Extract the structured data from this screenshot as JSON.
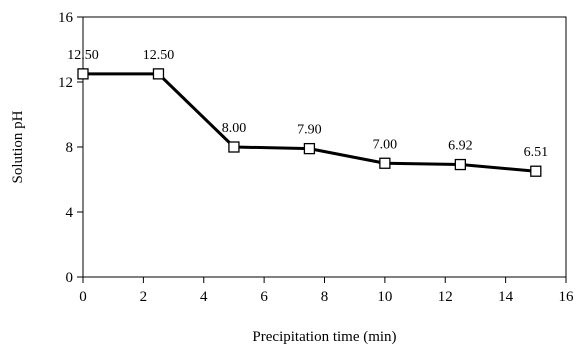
{
  "chart_data": {
    "type": "line",
    "title": "",
    "xlabel": "Precipitation time (min)",
    "ylabel": "Solution pH",
    "xlim": [
      0,
      16
    ],
    "ylim": [
      0,
      16
    ],
    "xticks": [
      0,
      2,
      4,
      6,
      8,
      10,
      12,
      14,
      16
    ],
    "yticks": [
      0,
      4,
      8,
      12,
      16
    ],
    "grid": false,
    "legend": "none",
    "marker": "open-square",
    "line_color": "#000000",
    "series": [
      {
        "x": [
          0,
          2.5,
          5,
          7.5,
          10,
          12.5,
          15
        ],
        "y": [
          12.5,
          12.5,
          8.0,
          7.9,
          7.0,
          6.92,
          6.51
        ],
        "labels": [
          "12.50",
          "12.50",
          "8.00",
          "7.90",
          "7.00",
          "6.92",
          "6.51"
        ]
      }
    ]
  }
}
